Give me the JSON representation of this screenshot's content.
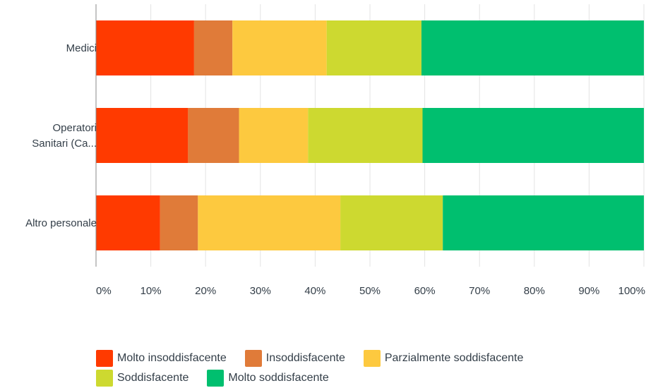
{
  "chart_data": {
    "type": "bar",
    "orientation": "horizontal",
    "stacked": true,
    "percent_stacked": true,
    "categories": [
      "Medici",
      "Operatori Sanitari (Ca...",
      "Altro personale"
    ],
    "category_label_lines": [
      [
        "Medici"
      ],
      [
        "Operatori",
        "Sanitari (Ca..."
      ],
      [
        "Altro personale"
      ]
    ],
    "series": [
      {
        "name": "Molto insoddisfacente",
        "color": "#ff3a00",
        "values": [
          17.9,
          16.8,
          11.7
        ]
      },
      {
        "name": "Insoddisfacente",
        "color": "#e07b39",
        "values": [
          7.0,
          9.3,
          6.9
        ]
      },
      {
        "name": "Parzialmente soddisfacente",
        "color": "#fdc93f",
        "values": [
          17.2,
          12.6,
          26.0
        ]
      },
      {
        "name": "Soddisfacente",
        "color": "#cdd930",
        "values": [
          17.3,
          20.9,
          18.7
        ]
      },
      {
        "name": "Molto soddisfacente",
        "color": "#00bf6f",
        "values": [
          40.6,
          40.4,
          36.7
        ]
      }
    ],
    "x_ticks": [
      "0%",
      "10%",
      "20%",
      "30%",
      "40%",
      "50%",
      "60%",
      "70%",
      "80%",
      "90%",
      "100%"
    ],
    "xlim": [
      0,
      100
    ],
    "grid": true,
    "legend_position": "bottom"
  }
}
